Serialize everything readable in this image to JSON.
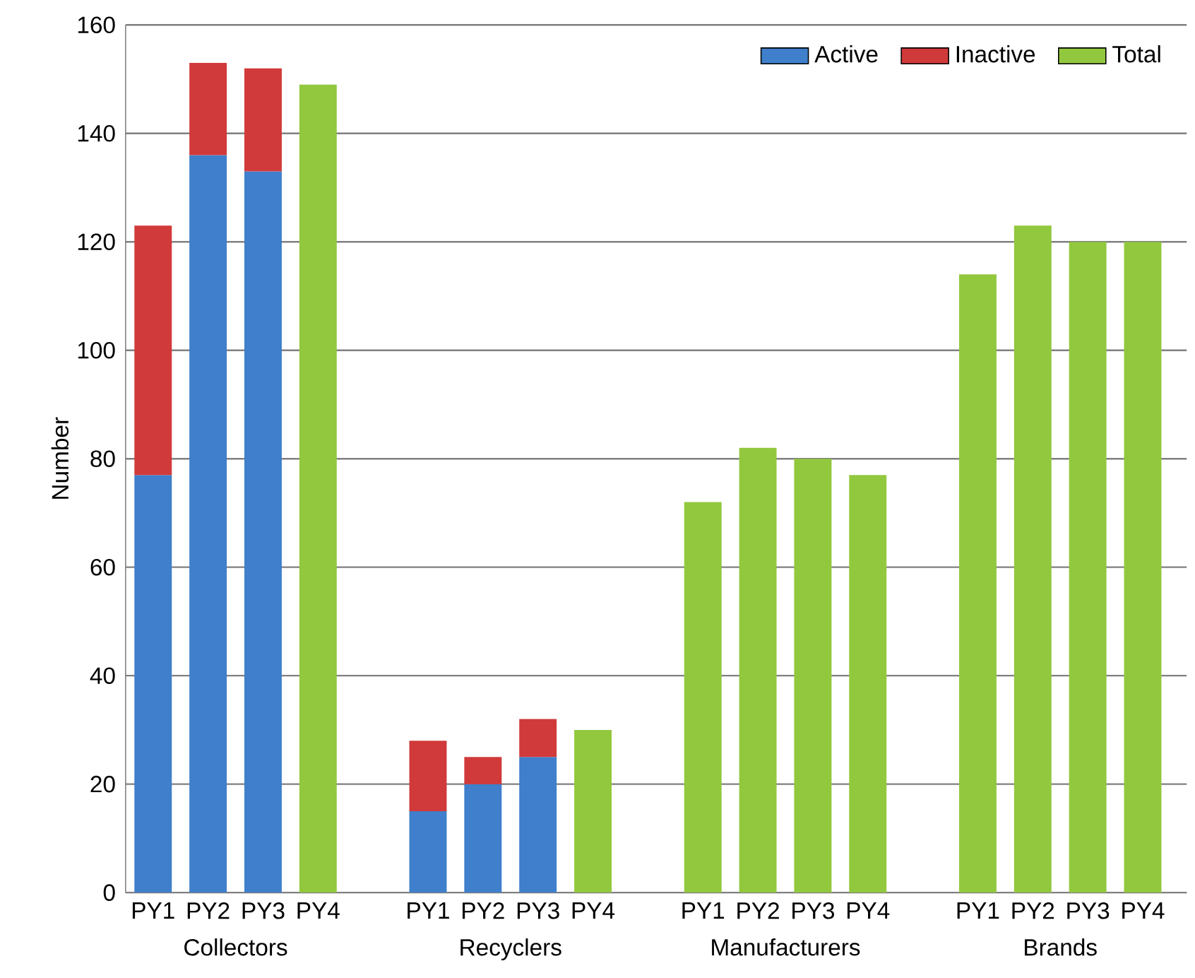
{
  "chart_data": {
    "type": "bar",
    "stacked": true,
    "ylabel": "Number",
    "categories": [
      "PY1",
      "PY2",
      "PY3",
      "PY4",
      "PY1",
      "PY2",
      "PY3",
      "PY4",
      "PY1",
      "PY2",
      "PY3",
      "PY4",
      "PY1",
      "PY2",
      "PY3",
      "PY4"
    ],
    "annotations": [
      "Collectors",
      "Recyclers",
      "Manufacturers",
      "Brands"
    ],
    "series": [
      {
        "name": "Active",
        "color": "#3f7fcb",
        "values": [
          77,
          136,
          133,
          null,
          15,
          20,
          25,
          null,
          null,
          null,
          null,
          null,
          null,
          null,
          null,
          null
        ]
      },
      {
        "name": "Inactive",
        "color": "#d13a3a",
        "values": [
          46,
          17,
          19,
          null,
          13,
          5,
          7,
          null,
          null,
          null,
          null,
          null,
          null,
          null,
          null,
          null
        ]
      },
      {
        "name": "Total",
        "color": "#92c83e",
        "values": [
          null,
          null,
          null,
          149,
          null,
          null,
          null,
          30,
          72,
          82,
          80,
          77,
          114,
          123,
          120,
          120
        ]
      }
    ],
    "ylim": [
      0,
      160
    ],
    "yticks": [
      0,
      20,
      40,
      60,
      80,
      100,
      120,
      140,
      160
    ],
    "grid": "y",
    "legend": "top right"
  }
}
